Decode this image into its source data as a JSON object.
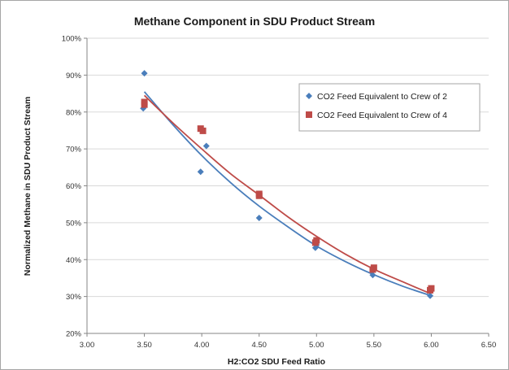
{
  "chart_data": {
    "type": "scatter",
    "title": "Methane Component in SDU Product Stream",
    "xlabel": "H2:CO2 SDU Feed Ratio",
    "ylabel": "Normalized Methane in SDU Product Stream",
    "xlim": [
      3.0,
      6.5
    ],
    "ylim": [
      0.2,
      1.0
    ],
    "x_ticks": [
      "3.00",
      "3.50",
      "4.00",
      "4.50",
      "5.00",
      "5.50",
      "6.00",
      "6.50"
    ],
    "y_ticks": [
      "20%",
      "30%",
      "40%",
      "50%",
      "60%",
      "70%",
      "80%",
      "90%",
      "100%"
    ],
    "grid": "horizontal",
    "legend_position": "top-right",
    "series": [
      {
        "name": "CO2 Feed Equivalent to Crew of 2",
        "marker": "diamond",
        "color": "#4a7ebb",
        "points": [
          {
            "x": 3.49,
            "y": 0.81
          },
          {
            "x": 3.5,
            "y": 0.905
          },
          {
            "x": 3.99,
            "y": 0.638
          },
          {
            "x": 4.04,
            "y": 0.708
          },
          {
            "x": 4.5,
            "y": 0.513
          },
          {
            "x": 4.99,
            "y": 0.432
          },
          {
            "x": 5.0,
            "y": 0.44
          },
          {
            "x": 5.49,
            "y": 0.358
          },
          {
            "x": 5.99,
            "y": 0.302
          }
        ],
        "trendline": {
          "color": "#4a7ebb",
          "points": [
            [
              3.5,
              0.855
            ],
            [
              3.75,
              0.765
            ],
            [
              4.0,
              0.682
            ],
            [
              4.25,
              0.609
            ],
            [
              4.5,
              0.545
            ],
            [
              4.75,
              0.489
            ],
            [
              5.0,
              0.437
            ],
            [
              5.25,
              0.395
            ],
            [
              5.5,
              0.359
            ],
            [
              5.75,
              0.328
            ],
            [
              6.0,
              0.302
            ]
          ]
        }
      },
      {
        "name": "CO2 Feed Equivalent to Crew of 4",
        "marker": "square",
        "color": "#be4b48",
        "points": [
          {
            "x": 3.5,
            "y": 0.82
          },
          {
            "x": 3.5,
            "y": 0.827
          },
          {
            "x": 3.99,
            "y": 0.755
          },
          {
            "x": 4.01,
            "y": 0.749
          },
          {
            "x": 4.5,
            "y": 0.573
          },
          {
            "x": 4.5,
            "y": 0.578
          },
          {
            "x": 4.99,
            "y": 0.446
          },
          {
            "x": 5.0,
            "y": 0.452
          },
          {
            "x": 5.49,
            "y": 0.373
          },
          {
            "x": 5.5,
            "y": 0.378
          },
          {
            "x": 5.99,
            "y": 0.317
          },
          {
            "x": 6.0,
            "y": 0.322
          }
        ],
        "trendline": {
          "color": "#be4b48",
          "points": [
            [
              3.5,
              0.845
            ],
            [
              3.75,
              0.77
            ],
            [
              4.0,
              0.7
            ],
            [
              4.25,
              0.633
            ],
            [
              4.5,
              0.575
            ],
            [
              4.75,
              0.516
            ],
            [
              5.0,
              0.463
            ],
            [
              5.25,
              0.415
            ],
            [
              5.5,
              0.374
            ],
            [
              5.75,
              0.34
            ],
            [
              6.0,
              0.307
            ]
          ]
        }
      }
    ]
  }
}
